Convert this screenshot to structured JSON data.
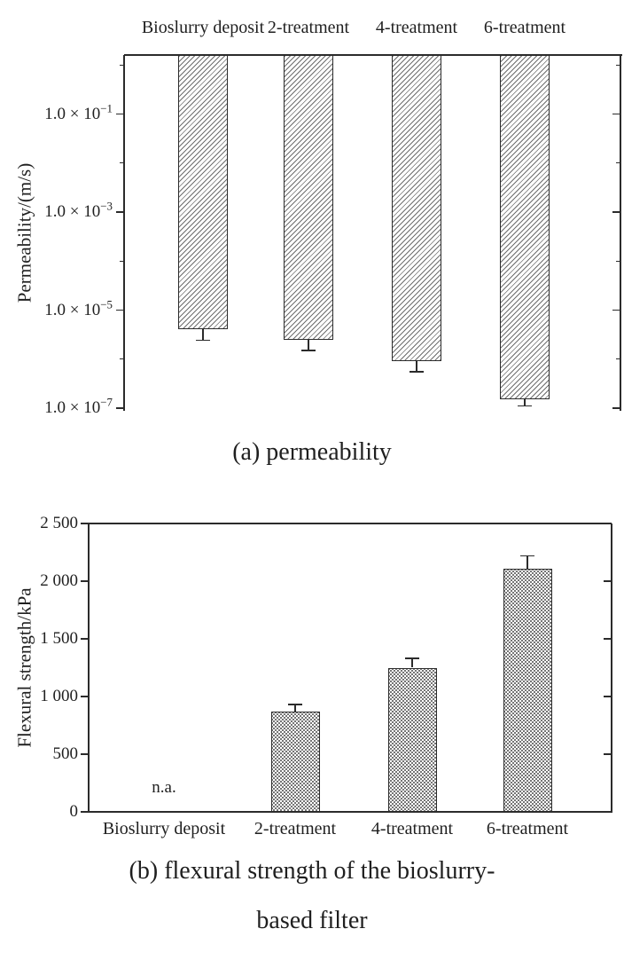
{
  "figure": {
    "background": "#ffffff",
    "line_color": "#2b2b2b"
  },
  "chart_data": [
    {
      "id": "permeability",
      "type": "bar",
      "subtype": "hanging-bars",
      "yscale": "log",
      "grid": false,
      "legend": "none",
      "bar_pattern": "diagonal-hatch",
      "caption": "(a) permeability",
      "ylabel": "Permeability/(m/s)",
      "ylim": [
        1e-07,
        1.6
      ],
      "categories": [
        "Bioslurry deposit",
        "2-treatment",
        "4-treatment",
        "6-treatment"
      ],
      "values": [
        4e-06,
        2.5e-06,
        9e-07,
        1.5e-07
      ],
      "error_lower_bound": [
        2.4e-06,
        1.5e-06,
        5.5e-07,
        1.1e-07
      ],
      "y_ticks": [
        {
          "mantissa": "1.0 × 10",
          "exponent": "−1",
          "value": 0.1
        },
        {
          "mantissa": "1.0 × 10",
          "exponent": "−3",
          "value": 0.001
        },
        {
          "mantissa": "1.0 × 10",
          "exponent": "−5",
          "value": 1e-05
        },
        {
          "mantissa": "1.0 × 10",
          "exponent": "−7",
          "value": 1e-07
        }
      ],
      "minor_ticks": [
        1,
        0.01,
        0.0001,
        1e-06
      ]
    },
    {
      "id": "flexural-strength",
      "type": "bar",
      "yscale": "linear",
      "grid": false,
      "legend": "none",
      "bar_pattern": "dot-grid",
      "caption_line1": "(b) flexural strength of the bioslurry-",
      "caption_line2": "based filter",
      "ylabel": "Flexural strength/kPa",
      "ylim": [
        0,
        2500
      ],
      "categories": [
        "Bioslurry deposit",
        "2-treatment",
        "4-treatment",
        "6-treatment"
      ],
      "values": [
        null,
        870,
        1250,
        2110
      ],
      "errors": [
        null,
        60,
        80,
        110
      ],
      "na_label": "n.a.",
      "y_ticks": [
        {
          "label": "0",
          "value": 0
        },
        {
          "label": "500",
          "value": 500
        },
        {
          "label": "1 000",
          "value": 1000
        },
        {
          "label": "1 500",
          "value": 1500
        },
        {
          "label": "2 000",
          "value": 2000
        },
        {
          "label": "2 500",
          "value": 2500
        }
      ]
    }
  ]
}
